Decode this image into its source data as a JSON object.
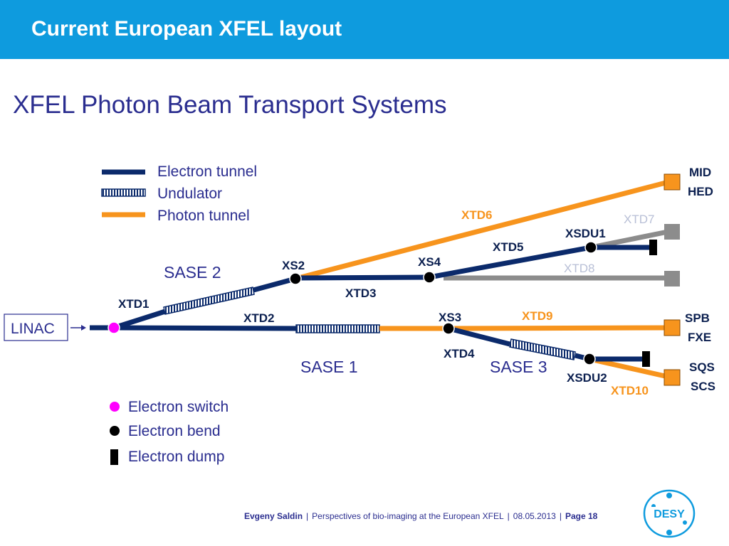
{
  "header": {
    "title": "Current European XFEL layout"
  },
  "subtitle": "XFEL Photon Beam Transport Systems",
  "legend_top": {
    "electron_tunnel": "Electron tunnel",
    "undulator": "Undulator",
    "photon_tunnel": "Photon tunnel"
  },
  "legend_bottom": {
    "electron_switch": "Electron switch",
    "electron_bend": "Electron bend",
    "electron_dump": "Electron dump"
  },
  "diagram": {
    "linac": "LINAC",
    "sase1": "SASE 1",
    "sase2": "SASE 2",
    "sase3": "SASE 3",
    "xtd1": "XTD1",
    "xtd2": "XTD2",
    "xtd3": "XTD3",
    "xtd4": "XTD4",
    "xtd5": "XTD5",
    "xtd6": "XTD6",
    "xtd7": "XTD7",
    "xtd8": "XTD8",
    "xtd9": "XTD9",
    "xtd10": "XTD10",
    "xs2": "XS2",
    "xs3": "XS3",
    "xs4": "XS4",
    "xsdu1": "XSDU1",
    "xsdu2": "XSDU2",
    "mid": "MID",
    "hed": "HED",
    "spb": "SPB",
    "fxe": "FXE",
    "sqs": "SQS",
    "scs": "SCS"
  },
  "colors": {
    "electron": "#0b2a6b",
    "photon": "#f7941d",
    "future": "#8c8c8c",
    "switch": "#ff00ff",
    "header": "#0e9bde",
    "text": "#2a2d8f"
  },
  "footer": {
    "author": "Evgeny Saldin",
    "talk": "Perspectives of bio-imaging at the European XFEL",
    "date": "08.05.2013",
    "page": "Page 18"
  },
  "logo": {
    "text": "DESY"
  }
}
